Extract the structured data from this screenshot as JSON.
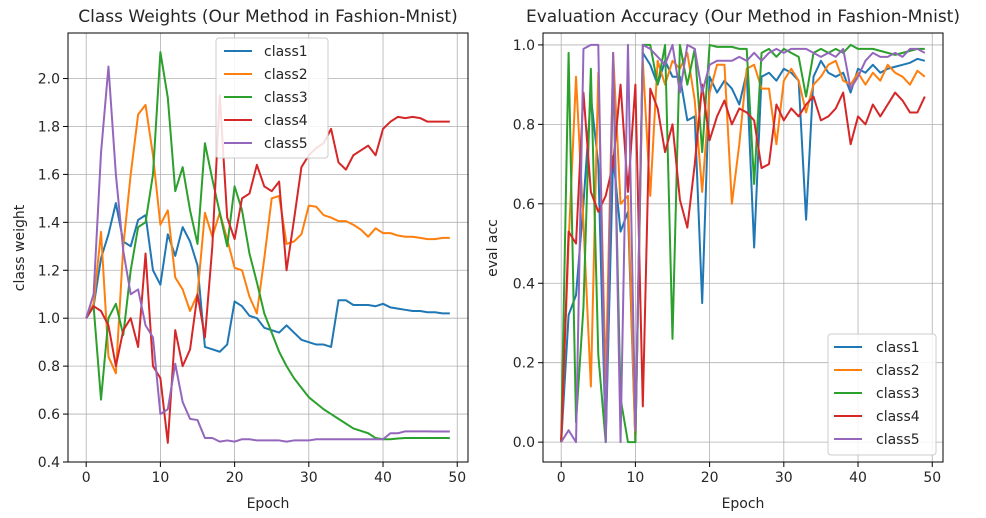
{
  "chart_data": [
    {
      "type": "line",
      "title": "Class Weights (Our Method in Fashion-Mnist)",
      "xlabel": "Epoch",
      "ylabel": "class weight",
      "xlim": [
        -2.45,
        51.45
      ],
      "ylim": [
        0.4,
        2.19
      ],
      "xticks": [
        0,
        10,
        20,
        30,
        40,
        50
      ],
      "yticks": [
        0.4,
        0.6,
        0.8,
        1.0,
        1.2,
        1.4,
        1.6,
        1.8,
        2.0
      ],
      "grid": true,
      "legend": "upper center",
      "x": [
        0,
        1,
        2,
        3,
        4,
        5,
        6,
        7,
        8,
        9,
        10,
        11,
        12,
        13,
        14,
        15,
        16,
        17,
        18,
        19,
        20,
        21,
        22,
        23,
        24,
        25,
        26,
        27,
        28,
        29,
        30,
        31,
        32,
        33,
        34,
        35,
        36,
        37,
        38,
        39,
        40,
        41,
        42,
        43,
        44,
        45,
        46,
        47,
        48,
        49
      ],
      "series": [
        {
          "name": "class1",
          "color": "#1f77b4",
          "values": [
            1.0,
            1.05,
            1.25,
            1.35,
            1.48,
            1.32,
            1.3,
            1.41,
            1.43,
            1.2,
            1.14,
            1.35,
            1.26,
            1.38,
            1.32,
            1.22,
            0.88,
            0.87,
            0.86,
            0.89,
            1.07,
            1.05,
            1.01,
            1.0,
            0.96,
            0.95,
            0.94,
            0.97,
            0.94,
            0.91,
            0.9,
            0.89,
            0.89,
            0.88,
            1.075,
            1.075,
            1.055,
            1.055,
            1.055,
            1.05,
            1.06,
            1.045,
            1.04,
            1.035,
            1.03,
            1.03,
            1.025,
            1.025,
            1.02,
            1.02
          ]
        },
        {
          "name": "class2",
          "color": "#ff7f0e",
          "values": [
            1.0,
            1.06,
            1.36,
            0.84,
            0.77,
            1.3,
            1.6,
            1.85,
            1.89,
            1.68,
            1.39,
            1.45,
            1.17,
            1.12,
            1.03,
            1.1,
            1.44,
            1.34,
            1.44,
            1.33,
            1.21,
            1.2,
            1.09,
            1.02,
            1.25,
            1.5,
            1.51,
            1.31,
            1.32,
            1.35,
            1.47,
            1.465,
            1.43,
            1.42,
            1.405,
            1.405,
            1.39,
            1.37,
            1.34,
            1.375,
            1.355,
            1.355,
            1.345,
            1.34,
            1.34,
            1.335,
            1.33,
            1.33,
            1.335,
            1.335
          ]
        },
        {
          "name": "class3",
          "color": "#2ca02c",
          "values": [
            1.0,
            1.05,
            0.66,
            1.0,
            1.06,
            0.93,
            1.2,
            1.38,
            1.4,
            1.6,
            2.11,
            1.92,
            1.53,
            1.63,
            1.45,
            1.31,
            1.73,
            1.58,
            1.44,
            1.3,
            1.55,
            1.45,
            1.27,
            1.15,
            1.02,
            0.94,
            0.86,
            0.8,
            0.75,
            0.71,
            0.67,
            0.645,
            0.62,
            0.6,
            0.58,
            0.56,
            0.54,
            0.53,
            0.52,
            0.5,
            0.495,
            0.495,
            0.498,
            0.5,
            0.5,
            0.5,
            0.5,
            0.5,
            0.5,
            0.5
          ]
        },
        {
          "name": "class4",
          "color": "#d62728",
          "values": [
            1.0,
            1.05,
            1.03,
            0.97,
            0.8,
            0.95,
            1.0,
            0.88,
            1.27,
            0.8,
            0.75,
            0.48,
            0.95,
            0.8,
            0.87,
            1.1,
            0.92,
            1.3,
            1.93,
            1.42,
            1.33,
            1.5,
            1.52,
            1.64,
            1.55,
            1.53,
            1.57,
            1.2,
            1.41,
            1.63,
            1.68,
            1.71,
            1.73,
            1.79,
            1.65,
            1.62,
            1.68,
            1.7,
            1.72,
            1.68,
            1.79,
            1.82,
            1.84,
            1.835,
            1.84,
            1.835,
            1.82,
            1.82,
            1.82,
            1.82
          ]
        },
        {
          "name": "class5",
          "color": "#9467bd",
          "values": [
            1.0,
            1.1,
            1.69,
            2.05,
            1.6,
            1.28,
            1.1,
            1.12,
            0.97,
            0.92,
            0.6,
            0.62,
            0.81,
            0.65,
            0.58,
            0.575,
            0.5,
            0.5,
            0.485,
            0.49,
            0.485,
            0.495,
            0.495,
            0.49,
            0.49,
            0.49,
            0.49,
            0.485,
            0.49,
            0.49,
            0.49,
            0.495,
            0.495,
            0.495,
            0.495,
            0.495,
            0.495,
            0.495,
            0.495,
            0.495,
            0.495,
            0.52,
            0.52,
            0.528,
            0.528,
            0.528,
            0.528,
            0.527,
            0.527,
            0.527
          ]
        }
      ]
    },
    {
      "type": "line",
      "title": "Evaluation Accuracy (Our Method in Fashion-Mnist)",
      "xlabel": "Epoch",
      "ylabel": "eval acc",
      "xlim": [
        -2.45,
        51.45
      ],
      "ylim": [
        -0.05,
        1.03
      ],
      "xticks": [
        0,
        10,
        20,
        30,
        40,
        50
      ],
      "yticks": [
        0.0,
        0.2,
        0.4,
        0.6,
        0.8,
        1.0
      ],
      "grid": true,
      "legend": "lower right",
      "x": [
        0,
        1,
        2,
        3,
        4,
        5,
        6,
        7,
        8,
        9,
        10,
        11,
        12,
        13,
        14,
        15,
        16,
        17,
        18,
        19,
        20,
        21,
        22,
        23,
        24,
        25,
        26,
        27,
        28,
        29,
        30,
        31,
        32,
        33,
        34,
        35,
        36,
        37,
        38,
        39,
        40,
        41,
        42,
        43,
        44,
        45,
        46,
        47,
        48,
        49
      ],
      "series": [
        {
          "name": "class1",
          "color": "#1f77b4",
          "values": [
            0.0,
            0.32,
            0.37,
            0.6,
            0.87,
            0.7,
            0.0,
            0.72,
            0.53,
            0.58,
            0.0,
            0.98,
            0.95,
            0.9,
            0.96,
            0.92,
            0.92,
            0.81,
            0.82,
            0.35,
            0.92,
            0.88,
            0.91,
            0.89,
            0.85,
            0.93,
            0.49,
            0.92,
            0.93,
            0.91,
            0.94,
            0.93,
            0.91,
            0.56,
            0.92,
            0.96,
            0.93,
            0.92,
            0.93,
            0.88,
            0.94,
            0.93,
            0.95,
            0.93,
            0.94,
            0.945,
            0.95,
            0.955,
            0.965,
            0.96
          ]
        },
        {
          "name": "class2",
          "color": "#ff7f0e",
          "values": [
            0.0,
            0.5,
            0.92,
            0.55,
            0.14,
            0.93,
            0.15,
            0.98,
            0.6,
            0.62,
            0.0,
            0.96,
            0.62,
            0.96,
            0.9,
            0.96,
            0.94,
            0.98,
            0.86,
            0.63,
            0.88,
            0.95,
            0.95,
            0.6,
            0.75,
            0.94,
            0.95,
            0.89,
            0.89,
            0.75,
            0.91,
            0.94,
            0.91,
            0.83,
            0.9,
            0.92,
            0.95,
            0.96,
            0.91,
            0.9,
            0.93,
            0.9,
            0.93,
            0.91,
            0.95,
            0.93,
            0.92,
            0.9,
            0.935,
            0.92
          ]
        },
        {
          "name": "class3",
          "color": "#2ca02c",
          "values": [
            0.0,
            0.98,
            0.05,
            0.34,
            0.94,
            0.22,
            0.0,
            0.95,
            0.11,
            0.0,
            0.0,
            1.0,
            1.0,
            0.9,
            1.0,
            0.26,
            1.0,
            0.9,
            0.99,
            0.73,
            1.0,
            0.995,
            0.995,
            0.995,
            0.99,
            0.99,
            0.65,
            0.98,
            0.99,
            0.97,
            0.99,
            0.98,
            0.97,
            0.87,
            0.98,
            0.99,
            0.98,
            0.99,
            0.98,
            1.0,
            0.99,
            0.99,
            0.99,
            0.985,
            0.98,
            0.975,
            0.98,
            0.985,
            0.99,
            0.99
          ]
        },
        {
          "name": "class4",
          "color": "#d62728",
          "values": [
            0.0,
            0.53,
            0.5,
            0.88,
            0.63,
            0.58,
            0.62,
            0.7,
            0.9,
            0.63,
            0.9,
            0.09,
            0.89,
            0.84,
            0.73,
            0.8,
            0.61,
            0.54,
            0.7,
            0.9,
            0.76,
            0.82,
            0.86,
            0.8,
            0.84,
            0.83,
            0.81,
            0.69,
            0.7,
            0.85,
            0.81,
            0.84,
            0.82,
            0.85,
            0.87,
            0.81,
            0.82,
            0.84,
            0.88,
            0.75,
            0.82,
            0.8,
            0.85,
            0.82,
            0.85,
            0.88,
            0.86,
            0.83,
            0.83,
            0.87
          ]
        },
        {
          "name": "class5",
          "color": "#9467bd",
          "values": [
            0.0,
            0.03,
            0.0,
            0.99,
            1.0,
            1.0,
            0.0,
            0.98,
            0.0,
            1.0,
            0.03,
            1.0,
            0.99,
            0.97,
            0.95,
            1.0,
            0.88,
            1.0,
            0.99,
            0.88,
            0.95,
            0.96,
            0.96,
            0.96,
            0.97,
            0.96,
            0.98,
            0.96,
            0.98,
            0.99,
            0.98,
            0.99,
            0.99,
            0.99,
            0.98,
            0.97,
            0.98,
            0.97,
            0.99,
            0.89,
            0.92,
            0.96,
            0.98,
            0.97,
            0.97,
            0.98,
            0.97,
            0.99,
            0.99,
            0.98
          ]
        }
      ]
    }
  ]
}
